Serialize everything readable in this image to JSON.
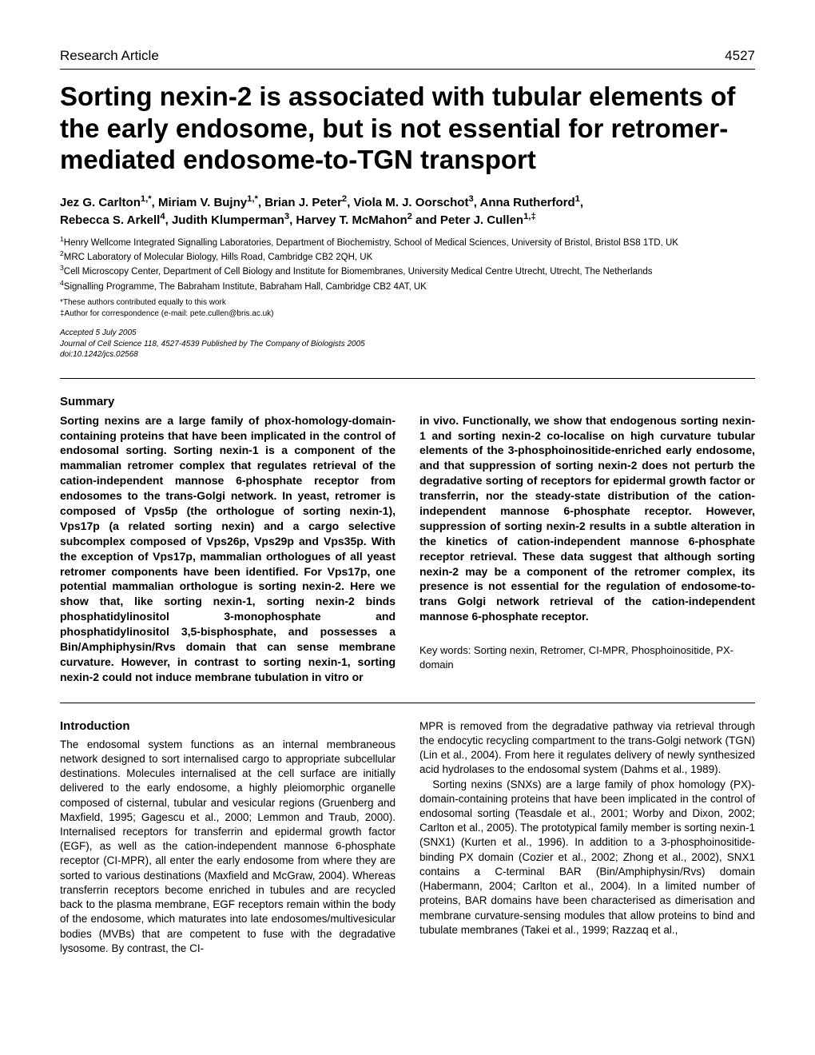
{
  "header": {
    "article_type": "Research Article",
    "page_number": "4527"
  },
  "title": "Sorting nexin-2 is associated with tubular elements of the early endosome, but is not essential for retromer-mediated endosome-to-TGN transport",
  "authors_line1": "Jez G. Carlton1,*, Miriam V. Bujny1,*, Brian J. Peter2, Viola M. J. Oorschot3, Anna Rutherford1,",
  "authors_line2": "Rebecca S. Arkell4, Judith Klumperman3, Harvey T. McMahon2 and Peter J. Cullen1,‡",
  "affiliations": {
    "a1": "1Henry Wellcome Integrated Signalling Laboratories, Department of Biochemistry, School of Medical Sciences, University of Bristol, Bristol BS8 1TD, UK",
    "a2": "2MRC Laboratory of Molecular Biology, Hills Road, Cambridge CB2 2QH, UK",
    "a3": "3Cell Microscopy Center, Department of Cell Biology and Institute for Biomembranes, University Medical Centre Utrecht, Utrecht, The Netherlands",
    "a4": "4Signalling Programme, The Babraham Institute, Babraham Hall, Cambridge CB2 4AT, UK"
  },
  "footnotes": {
    "f1": "*These authors contributed equally to this work",
    "f2": "‡Author for correspondence (e-mail: pete.cullen@bris.ac.uk)"
  },
  "accepted": {
    "line1": "Accepted 5 July 2005",
    "line2": "Journal of Cell Science 118, 4527-4539 Published by The Company of Biologists 2005",
    "line3": "doi:10.1242/jcs.02568"
  },
  "summary": {
    "heading": "Summary",
    "left": "Sorting nexins are a large family of phox-homology-domain-containing proteins that have been implicated in the control of endosomal sorting. Sorting nexin-1 is a component of the mammalian retromer complex that regulates retrieval of the cation-independent mannose 6-phosphate receptor from endosomes to the trans-Golgi network. In yeast, retromer is composed of Vps5p (the orthologue of sorting nexin-1), Vps17p (a related sorting nexin) and a cargo selective subcomplex composed of Vps26p, Vps29p and Vps35p. With the exception of Vps17p, mammalian orthologues of all yeast retromer components have been identified. For Vps17p, one potential mammalian orthologue is sorting nexin-2. Here we show that, like sorting nexin-1, sorting nexin-2 binds phosphatidylinositol 3-monophosphate and phosphatidylinositol 3,5-bisphosphate, and possesses a Bin/Amphiphysin/Rvs domain that can sense membrane curvature. However, in contrast to sorting nexin-1, sorting nexin-2 could not induce membrane tubulation in vitro or",
    "right": "in vivo. Functionally, we show that endogenous sorting nexin-1 and sorting nexin-2 co-localise on high curvature tubular elements of the 3-phosphoinositide-enriched early endosome, and that suppression of sorting nexin-2 does not perturb the degradative sorting of receptors for epidermal growth factor or transferrin, nor the steady-state distribution of the cation-independent mannose 6-phosphate receptor. However, suppression of sorting nexin-2 results in a subtle alteration in the kinetics of cation-independent mannose 6-phosphate receptor retrieval. These data suggest that although sorting nexin-2 may be a component of the retromer complex, its presence is not essential for the regulation of endosome-to-trans Golgi network retrieval of the cation-independent mannose 6-phosphate receptor.",
    "keywords": "Key words: Sorting nexin, Retromer, CI-MPR, Phosphoinositide, PX-domain"
  },
  "introduction": {
    "heading": "Introduction",
    "left": "The endosomal system functions as an internal membraneous network designed to sort internalised cargo to appropriate subcellular destinations. Molecules internalised at the cell surface are initially delivered to the early endosome, a highly pleiomorphic organelle composed of cisternal, tubular and vesicular regions (Gruenberg and Maxfield, 1995; Gagescu et al., 2000; Lemmon and Traub, 2000). Internalised receptors for transferrin and epidermal growth factor (EGF), as well as the cation-independent mannose 6-phosphate receptor (CI-MPR), all enter the early endosome from where they are sorted to various destinations (Maxfield and McGraw, 2004). Whereas transferrin receptors become enriched in tubules and are recycled back to the plasma membrane, EGF receptors remain within the body of the endosome, which maturates into late endosomes/multivesicular bodies (MVBs) that are competent to fuse with the degradative lysosome. By contrast, the CI-",
    "right1": "MPR is removed from the degradative pathway via retrieval through the endocytic recycling compartment to the trans-Golgi network (TGN) (Lin et al., 2004). From here it regulates delivery of newly synthesized acid hydrolases to the endosomal system (Dahms et al., 1989).",
    "right2": "Sorting nexins (SNXs) are a large family of phox homology (PX)-domain-containing proteins that have been implicated in the control of endosomal sorting (Teasdale et al., 2001; Worby and Dixon, 2002; Carlton et al., 2005). The prototypical family member is sorting nexin-1 (SNX1) (Kurten et al., 1996). In addition to a 3-phosphoinositide-binding PX domain (Cozier et al., 2002; Zhong et al., 2002), SNX1 contains a C-terminal BAR (Bin/Amphiphysin/Rvs) domain (Habermann, 2004; Carlton et al., 2004). In a limited number of proteins, BAR domains have been characterised as dimerisation and membrane curvature-sensing modules that allow proteins to bind and tubulate membranes (Takei et al., 1999; Razzaq et al.,"
  }
}
